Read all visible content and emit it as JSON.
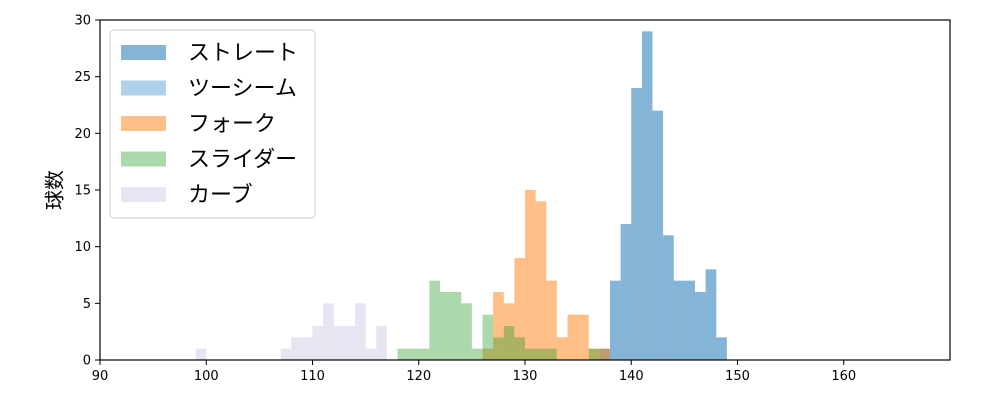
{
  "chart_data": {
    "type": "histogram",
    "ylabel": "球数",
    "xlim": [
      90,
      170
    ],
    "ylim": [
      0,
      30
    ],
    "xticks": [
      90,
      100,
      110,
      120,
      130,
      140,
      150,
      160
    ],
    "yticks": [
      0,
      5,
      10,
      15,
      20,
      25,
      30
    ],
    "legend_position": "top-left",
    "series": [
      {
        "name": "ストレート",
        "color": "#1f77b4",
        "opacity": 0.55,
        "bins": [
          [
            137,
            138,
            1
          ],
          [
            138,
            139,
            7
          ],
          [
            139,
            140,
            12
          ],
          [
            140,
            141,
            24
          ],
          [
            141,
            142,
            29
          ],
          [
            142,
            143,
            22
          ],
          [
            143,
            144,
            11
          ],
          [
            144,
            145,
            7
          ],
          [
            145,
            146,
            7
          ],
          [
            146,
            147,
            6
          ],
          [
            147,
            148,
            8
          ],
          [
            148,
            149,
            2
          ]
        ]
      },
      {
        "name": "ツーシーム",
        "color": "#6baed6",
        "opacity": 0.55,
        "bins": []
      },
      {
        "name": "フォーク",
        "color": "#ff7f0e",
        "opacity": 0.5,
        "bins": [
          [
            126,
            127,
            1
          ],
          [
            127,
            128,
            6
          ],
          [
            128,
            129,
            5
          ],
          [
            129,
            130,
            9
          ],
          [
            130,
            131,
            15
          ],
          [
            131,
            132,
            14
          ],
          [
            132,
            133,
            7
          ],
          [
            133,
            134,
            2
          ],
          [
            134,
            135,
            4
          ],
          [
            135,
            136,
            4
          ],
          [
            136,
            137,
            1
          ],
          [
            137,
            138,
            1
          ]
        ]
      },
      {
        "name": "スライダー",
        "color": "#2ca02c",
        "opacity": 0.4,
        "bins": [
          [
            118,
            119,
            1
          ],
          [
            119,
            120,
            1
          ],
          [
            120,
            121,
            1
          ],
          [
            121,
            122,
            7
          ],
          [
            122,
            123,
            6
          ],
          [
            123,
            124,
            6
          ],
          [
            124,
            125,
            5
          ],
          [
            125,
            126,
            1
          ],
          [
            126,
            127,
            4
          ],
          [
            127,
            128,
            2
          ],
          [
            128,
            129,
            3
          ],
          [
            129,
            130,
            2
          ],
          [
            130,
            131,
            1
          ],
          [
            131,
            132,
            1
          ],
          [
            132,
            133,
            1
          ],
          [
            136,
            137,
            1
          ]
        ]
      },
      {
        "name": "カーブ",
        "color": "#c7c7e2",
        "opacity": 0.45,
        "bins": [
          [
            99,
            100,
            1
          ],
          [
            107,
            108,
            1
          ],
          [
            108,
            109,
            2
          ],
          [
            109,
            110,
            2
          ],
          [
            110,
            111,
            3
          ],
          [
            111,
            112,
            5
          ],
          [
            112,
            113,
            3
          ],
          [
            113,
            114,
            3
          ],
          [
            114,
            115,
            5
          ],
          [
            115,
            116,
            1
          ],
          [
            116,
            117,
            3
          ]
        ]
      }
    ]
  }
}
